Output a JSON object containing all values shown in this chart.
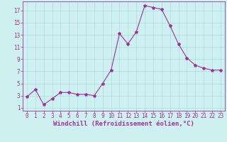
{
  "x": [
    0,
    1,
    2,
    3,
    4,
    5,
    6,
    7,
    8,
    9,
    10,
    11,
    12,
    13,
    14,
    15,
    16,
    17,
    18,
    19,
    20,
    21,
    22,
    23
  ],
  "y": [
    2.8,
    4.0,
    1.5,
    2.5,
    3.5,
    3.5,
    3.2,
    3.2,
    3.0,
    5.0,
    7.2,
    13.2,
    11.5,
    13.5,
    17.8,
    17.5,
    17.2,
    14.5,
    11.5,
    9.2,
    8.0,
    7.5,
    7.2,
    7.2
  ],
  "line_color": "#993399",
  "marker": "*",
  "marker_size": 3,
  "bg_color": "#cff0f0",
  "grid_color": "#aadddd",
  "xlabel": "Windchill (Refroidissement éolien,°C)",
  "xlim": [
    -0.5,
    23.5
  ],
  "ylim": [
    0.5,
    18.5
  ],
  "xticks": [
    0,
    1,
    2,
    3,
    4,
    5,
    6,
    7,
    8,
    9,
    10,
    11,
    12,
    13,
    14,
    15,
    16,
    17,
    18,
    19,
    20,
    21,
    22,
    23
  ],
  "yticks": [
    1,
    3,
    5,
    7,
    9,
    11,
    13,
    15,
    17
  ],
  "tick_color": "#993399",
  "label_color": "#993399",
  "spine_color": "#993399",
  "font_size_ticks": 5.5,
  "font_size_xlabel": 6.5
}
